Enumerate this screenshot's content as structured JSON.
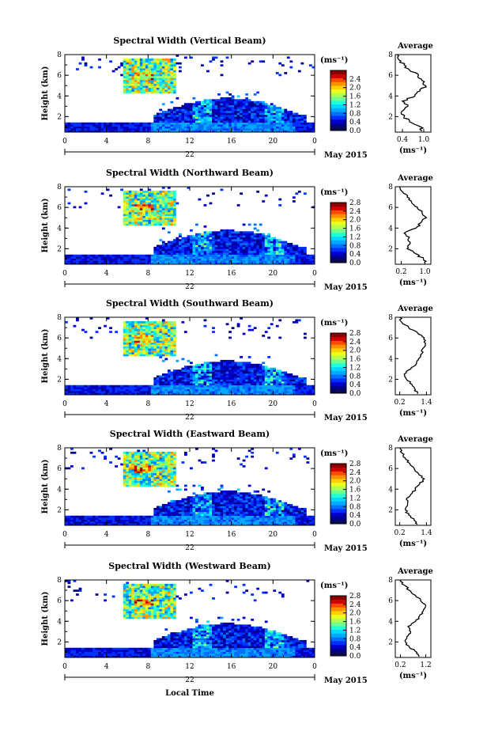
{
  "figure": {
    "xlabel": "Local Time",
    "date_label": "May 2015",
    "day_label": "22",
    "average_title": "Average",
    "unit_label": "(ms⁻¹)",
    "height_label": "Height (km)"
  },
  "colorbar": {
    "colors": [
      "#0a0a50",
      "#00008c",
      "#0000d0",
      "#0030ff",
      "#0070ff",
      "#00a8ff",
      "#00d8ff",
      "#20ffd8",
      "#70ff90",
      "#b0ff50",
      "#e8ff20",
      "#ffd000",
      "#ff9000",
      "#ff4800",
      "#d00000",
      "#8c0000"
    ]
  },
  "chart_data": [
    {
      "type": "heatmap",
      "title": "Spectral Width (Vertical Beam)",
      "x_ticks": [
        "0",
        "4",
        "8",
        "12",
        "16",
        "20",
        "0"
      ],
      "x_range": [
        0,
        24
      ],
      "y_ticks": [
        "2",
        "4",
        "6",
        "8"
      ],
      "y_range": [
        0.5,
        8
      ],
      "colorbar_ticks": [
        "0.0",
        "0.4",
        "0.8",
        "1.2",
        "1.6",
        "2.0",
        "2.4"
      ],
      "colorbar_range": [
        0,
        2.8
      ],
      "avg_x_ticks": [
        "0.4",
        "1.0"
      ],
      "avg_x_range": [
        0.2,
        1.2
      ],
      "avg_profile": {
        "height": [
          0.6,
          1.0,
          1.5,
          2.0,
          2.5,
          3.0,
          3.5,
          4.0,
          4.5,
          5.0,
          5.5,
          6.0,
          6.5,
          7.0,
          7.5,
          8.0
        ],
        "value": [
          0.95,
          0.92,
          0.6,
          0.45,
          0.38,
          0.55,
          0.4,
          0.75,
          0.9,
          1.05,
          0.95,
          0.85,
          0.6,
          0.45,
          0.3,
          0.25
        ]
      }
    },
    {
      "type": "heatmap",
      "title": "Spectral Width (Northward Beam)",
      "x_ticks": [
        "0",
        "4",
        "8",
        "12",
        "16",
        "20",
        "0"
      ],
      "x_range": [
        0,
        24
      ],
      "y_ticks": [
        "2",
        "4",
        "6",
        "8"
      ],
      "y_range": [
        0.5,
        8
      ],
      "colorbar_ticks": [
        "0.0",
        "0.4",
        "0.8",
        "1.2",
        "1.6",
        "2.0",
        "2.4",
        "2.8"
      ],
      "colorbar_range": [
        0,
        2.8
      ],
      "avg_x_ticks": [
        "0.2",
        "1.0"
      ],
      "avg_x_range": [
        0.0,
        1.2
      ],
      "avg_profile": {
        "height": [
          0.6,
          1.0,
          1.5,
          2.0,
          2.5,
          3.0,
          3.5,
          4.0,
          4.5,
          5.0,
          5.5,
          6.0,
          6.5,
          7.0,
          7.5,
          8.0
        ],
        "value": [
          1.0,
          0.95,
          0.7,
          0.4,
          0.5,
          0.45,
          0.3,
          0.7,
          0.85,
          1.05,
          0.9,
          0.75,
          0.55,
          0.4,
          0.25,
          0.15
        ]
      }
    },
    {
      "type": "heatmap",
      "title": "Spectral Width (Southward Beam)",
      "x_ticks": [
        "0",
        "4",
        "8",
        "12",
        "16",
        "20",
        "0"
      ],
      "x_range": [
        0,
        24
      ],
      "y_ticks": [
        "2",
        "4",
        "6",
        "8"
      ],
      "y_range": [
        0.5,
        8
      ],
      "colorbar_ticks": [
        "0.0",
        "0.4",
        "0.8",
        "1.2",
        "1.6",
        "2.0",
        "2.4",
        "2.8"
      ],
      "colorbar_range": [
        0,
        2.8
      ],
      "avg_x_ticks": [
        "0.2",
        "1.4"
      ],
      "avg_x_range": [
        0.0,
        1.6
      ],
      "avg_profile": {
        "height": [
          0.6,
          1.0,
          1.5,
          2.0,
          2.5,
          3.0,
          3.5,
          4.0,
          4.5,
          5.0,
          5.5,
          6.0,
          6.5,
          7.0,
          7.5,
          8.0
        ],
        "value": [
          1.0,
          0.9,
          0.75,
          0.5,
          0.4,
          0.7,
          0.95,
          1.05,
          1.2,
          1.25,
          1.35,
          1.3,
          1.0,
          0.6,
          0.3,
          0.2
        ]
      }
    },
    {
      "type": "heatmap",
      "title": "Spectral Width (Eastward Beam)",
      "x_ticks": [
        "0",
        "4",
        "8",
        "12",
        "16",
        "20",
        "0"
      ],
      "x_range": [
        0,
        24
      ],
      "y_ticks": [
        "2",
        "4",
        "6",
        "8"
      ],
      "y_range": [
        0.5,
        8
      ],
      "colorbar_ticks": [
        "0.0",
        "0.4",
        "0.8",
        "1.2",
        "1.6",
        "2.0",
        "2.4",
        "2.8"
      ],
      "colorbar_range": [
        0,
        2.8
      ],
      "avg_x_ticks": [
        "0.2",
        "1.4"
      ],
      "avg_x_range": [
        0.0,
        1.6
      ],
      "avg_profile": {
        "height": [
          0.6,
          1.0,
          1.5,
          2.0,
          2.5,
          3.0,
          3.5,
          4.0,
          4.5,
          5.0,
          5.5,
          6.0,
          6.5,
          7.0,
          7.5,
          8.0
        ],
        "value": [
          1.0,
          0.85,
          0.6,
          0.45,
          0.55,
          0.5,
          0.7,
          0.9,
          1.1,
          1.3,
          1.05,
          0.85,
          0.65,
          0.45,
          0.3,
          0.2
        ]
      }
    },
    {
      "type": "heatmap",
      "title": "Spectral Width (Westward Beam)",
      "x_ticks": [
        "0",
        "4",
        "8",
        "12",
        "16",
        "20",
        "0"
      ],
      "x_range": [
        0,
        24
      ],
      "y_ticks": [
        "2",
        "4",
        "6",
        "8"
      ],
      "y_range": [
        0.5,
        8
      ],
      "colorbar_ticks": [
        "0.0",
        "0.4",
        "0.8",
        "1.2",
        "1.6",
        "2.0",
        "2.4",
        "2.8"
      ],
      "colorbar_range": [
        0,
        2.8
      ],
      "avg_x_ticks": [
        "0.2",
        "1.2"
      ],
      "avg_x_range": [
        0.0,
        1.4
      ],
      "avg_profile": {
        "height": [
          0.6,
          1.0,
          1.5,
          2.0,
          2.5,
          3.0,
          3.5,
          4.0,
          4.5,
          5.0,
          5.5,
          6.0,
          6.5,
          7.0,
          7.5,
          8.0
        ],
        "value": [
          0.95,
          0.85,
          0.55,
          0.4,
          0.45,
          0.6,
          0.5,
          0.8,
          0.95,
          1.1,
          1.2,
          1.0,
          0.8,
          0.55,
          0.35,
          0.2
        ]
      }
    }
  ]
}
